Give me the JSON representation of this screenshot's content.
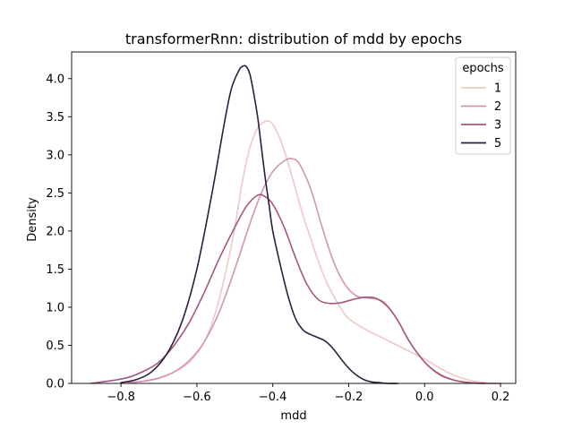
{
  "chart_data": {
    "type": "line",
    "title": "transformerRnn: distribution of mdd by epochs",
    "xlabel": "mdd",
    "ylabel": "Density",
    "xlim": [
      -0.93,
      0.24
    ],
    "ylim": [
      0,
      4.35
    ],
    "xticks": [
      -0.8,
      -0.6,
      -0.4,
      -0.2,
      0.0,
      0.2
    ],
    "xtick_labels": [
      "−0.8",
      "−0.6",
      "−0.4",
      "−0.2",
      "0.0",
      "0.2"
    ],
    "yticks": [
      0.0,
      0.5,
      1.0,
      1.5,
      2.0,
      2.5,
      3.0,
      3.5,
      4.0
    ],
    "ytick_labels": [
      "0.0",
      "0.5",
      "1.0",
      "1.5",
      "2.0",
      "2.5",
      "3.0",
      "3.5",
      "4.0"
    ],
    "grid": false,
    "legend": {
      "title": "epochs",
      "placement": "top-right"
    },
    "series": [
      {
        "name": "1",
        "color": "#ecc9c2",
        "x": [
          -0.78,
          -0.74,
          -0.7,
          -0.66,
          -0.62,
          -0.58,
          -0.55,
          -0.52,
          -0.5,
          -0.48,
          -0.46,
          -0.44,
          -0.42,
          -0.41,
          -0.4,
          -0.38,
          -0.36,
          -0.34,
          -0.32,
          -0.3,
          -0.28,
          -0.26,
          -0.24,
          -0.22,
          -0.2,
          -0.16,
          -0.12,
          -0.08,
          -0.04,
          0.0,
          0.04,
          0.08,
          0.12,
          0.16,
          0.2
        ],
        "y": [
          0.01,
          0.03,
          0.07,
          0.15,
          0.28,
          0.55,
          0.95,
          1.55,
          2.05,
          2.65,
          3.1,
          3.35,
          3.44,
          3.44,
          3.4,
          3.2,
          2.9,
          2.55,
          2.2,
          1.9,
          1.6,
          1.35,
          1.15,
          0.98,
          0.85,
          0.72,
          0.62,
          0.52,
          0.42,
          0.32,
          0.2,
          0.1,
          0.04,
          0.01,
          0.0
        ]
      },
      {
        "name": "2",
        "color": "#d295ac",
        "x": [
          -0.78,
          -0.74,
          -0.7,
          -0.66,
          -0.62,
          -0.58,
          -0.54,
          -0.5,
          -0.46,
          -0.43,
          -0.4,
          -0.37,
          -0.35,
          -0.33,
          -0.3,
          -0.27,
          -0.24,
          -0.21,
          -0.18,
          -0.15,
          -0.12,
          -0.1,
          -0.07,
          -0.04,
          0.0,
          0.04,
          0.08,
          0.12,
          0.16,
          0.2
        ],
        "y": [
          0.01,
          0.03,
          0.07,
          0.15,
          0.3,
          0.55,
          0.95,
          1.5,
          2.1,
          2.5,
          2.78,
          2.92,
          2.95,
          2.88,
          2.55,
          2.05,
          1.6,
          1.3,
          1.15,
          1.12,
          1.1,
          1.03,
          0.82,
          0.55,
          0.28,
          0.11,
          0.04,
          0.01,
          0.0,
          0.0
        ]
      },
      {
        "name": "3",
        "color": "#a2577f",
        "x": [
          -0.88,
          -0.85,
          -0.82,
          -0.78,
          -0.74,
          -0.7,
          -0.66,
          -0.62,
          -0.58,
          -0.54,
          -0.5,
          -0.47,
          -0.44,
          -0.42,
          -0.4,
          -0.37,
          -0.34,
          -0.31,
          -0.28,
          -0.25,
          -0.22,
          -0.19,
          -0.16,
          -0.13,
          -0.1,
          -0.07,
          -0.04,
          0.0,
          0.04,
          0.08,
          0.12,
          0.16
        ],
        "y": [
          0.0,
          0.02,
          0.04,
          0.08,
          0.16,
          0.28,
          0.5,
          0.8,
          1.2,
          1.65,
          2.05,
          2.32,
          2.47,
          2.45,
          2.35,
          2.05,
          1.65,
          1.3,
          1.1,
          1.05,
          1.06,
          1.1,
          1.13,
          1.12,
          1.02,
          0.82,
          0.55,
          0.28,
          0.12,
          0.04,
          0.01,
          0.0
        ]
      },
      {
        "name": "5",
        "color": "#2d1e3e",
        "x": [
          -0.8,
          -0.76,
          -0.72,
          -0.68,
          -0.64,
          -0.6,
          -0.56,
          -0.53,
          -0.51,
          -0.49,
          -0.48,
          -0.47,
          -0.46,
          -0.45,
          -0.44,
          -0.43,
          -0.42,
          -0.41,
          -0.4,
          -0.38,
          -0.36,
          -0.34,
          -0.32,
          -0.3,
          -0.28,
          -0.26,
          -0.24,
          -0.22,
          -0.2,
          -0.18,
          -0.16,
          -0.14,
          -0.12,
          -0.1,
          -0.07
        ],
        "y": [
          0.01,
          0.05,
          0.15,
          0.38,
          0.8,
          1.5,
          2.5,
          3.35,
          3.85,
          4.1,
          4.16,
          4.16,
          4.05,
          3.8,
          3.5,
          3.1,
          2.7,
          2.35,
          2.0,
          1.55,
          1.15,
          0.85,
          0.7,
          0.64,
          0.6,
          0.55,
          0.45,
          0.32,
          0.2,
          0.11,
          0.05,
          0.02,
          0.01,
          0.0,
          0.0
        ]
      }
    ]
  }
}
